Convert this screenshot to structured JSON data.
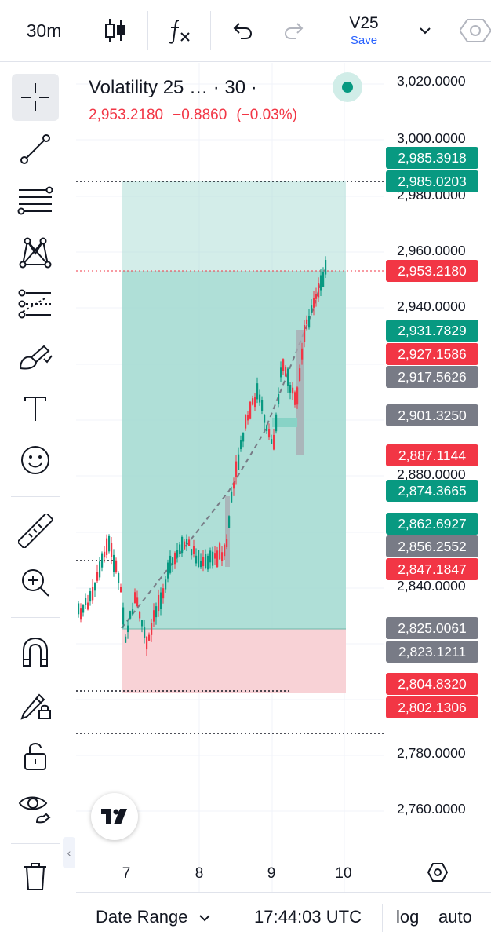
{
  "toolbar": {
    "interval": "30m",
    "symbol": "V25",
    "save_label": "Save"
  },
  "sidebar": {
    "tools": [
      "crosshair-icon",
      "trendline-icon",
      "fib-retracement-icon",
      "pattern-icon",
      "forecast-icon",
      "brush-icon",
      "text-icon",
      "emoji-icon",
      "ruler-icon",
      "zoom-in-icon",
      "magnet-icon",
      "lock-drawing-icon",
      "unlock-icon",
      "eye-icon",
      "trash-icon"
    ]
  },
  "legend": {
    "title": "Volatility 25 … · 30 ·",
    "last": "2,953.2180",
    "change": "−0.8860",
    "change_pct": "(−0.03%)"
  },
  "price_axis": {
    "labels": [
      "3,020.0000",
      "3,000.0000",
      "2,980.0000",
      "2,960.0000",
      "2,940.0000",
      "2,880.0000",
      "2,840.0000",
      "2,780.0000",
      "2,760.0000"
    ],
    "tags": [
      {
        "text": "2,985.3918",
        "color": "#089981"
      },
      {
        "text": "2,985.0203",
        "color": "#089981"
      },
      {
        "text": "2,953.2180",
        "color": "#f23645"
      },
      {
        "text": "2,931.7829",
        "color": "#089981"
      },
      {
        "text": "2,927.1586",
        "color": "#f23645"
      },
      {
        "text": "2,917.5626",
        "color": "#787b86"
      },
      {
        "text": "2,901.3250",
        "color": "#787b86"
      },
      {
        "text": "2,887.1144",
        "color": "#f23645"
      },
      {
        "text": "2,874.3665",
        "color": "#089981"
      },
      {
        "text": "2,862.6927",
        "color": "#089981"
      },
      {
        "text": "2,856.2552",
        "color": "#787b86"
      },
      {
        "text": "2,847.1847",
        "color": "#f23645"
      },
      {
        "text": "2,825.0061",
        "color": "#787b86"
      },
      {
        "text": "2,823.1211",
        "color": "#787b86"
      },
      {
        "text": "2,804.8320",
        "color": "#f23645"
      },
      {
        "text": "2,802.1306",
        "color": "#f23645"
      }
    ]
  },
  "time_axis": {
    "labels": [
      "7",
      "8",
      "9",
      "10"
    ]
  },
  "bottom": {
    "date_range": "Date Range",
    "time": "17:44:03 UTC",
    "log": "log",
    "auto": "auto"
  },
  "colors": {
    "up": "#089981",
    "down": "#f23645",
    "profit_zone": "#a8dcd3",
    "loss_zone": "#f8d2d6",
    "accent": "#2962ff"
  }
}
